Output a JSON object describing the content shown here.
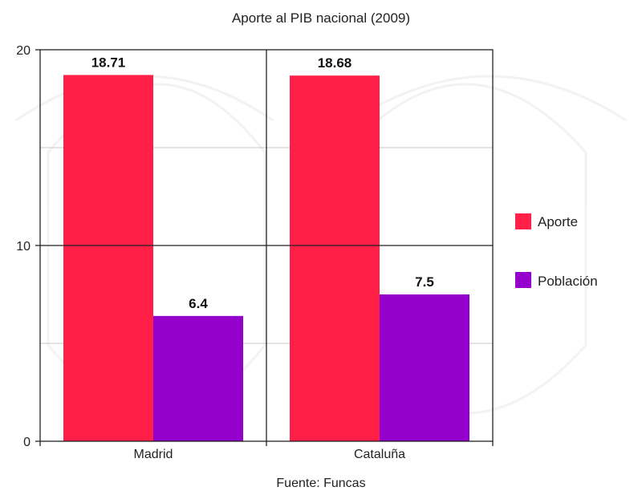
{
  "chart_data": {
    "type": "bar",
    "title": "Aporte al PIB nacional (2009)",
    "source": "Fuente: Funcas",
    "categories": [
      "Madrid",
      "Cataluña"
    ],
    "series": [
      {
        "name": "Aporte",
        "values": [
          18.71,
          18.68
        ],
        "color": "#ff1f47"
      },
      {
        "name": "Población",
        "values": [
          6.4,
          7.5
        ],
        "color": "#9400cc"
      }
    ],
    "value_labels": [
      [
        "18.71",
        "18.68"
      ],
      [
        "6.4",
        "7.5"
      ]
    ],
    "ylim": [
      0,
      20
    ],
    "yticks": [
      "0",
      "10",
      "20"
    ],
    "grid": true,
    "legend_position": "right"
  }
}
